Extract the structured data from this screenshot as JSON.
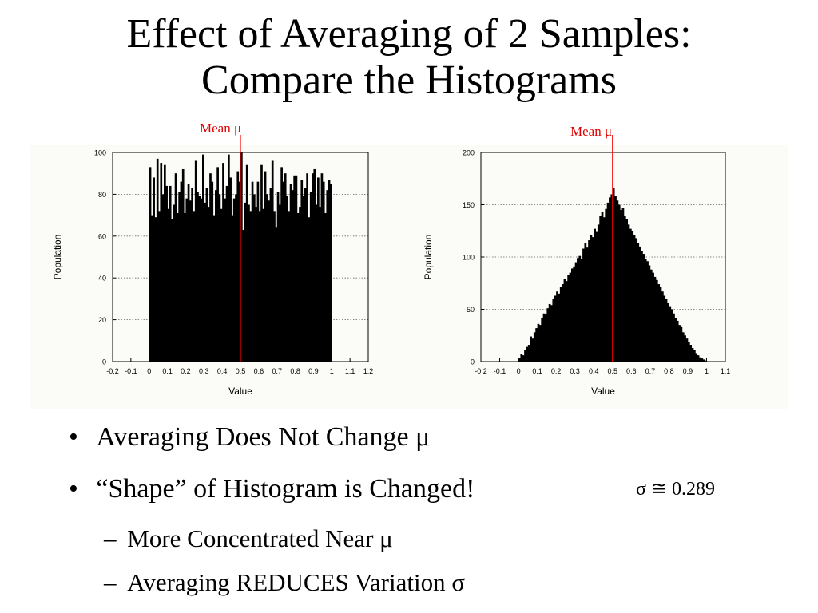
{
  "title": {
    "line1": "Effect of Averaging of 2 Samples:",
    "line2": "Compare the Histograms"
  },
  "chart_data": [
    {
      "type": "bar",
      "xlabel": "Value",
      "ylabel": "Population",
      "xlim": [
        -0.2,
        1.2
      ],
      "ylim": [
        0,
        100
      ],
      "x_ticks": [
        "-0.2",
        "-0.1",
        "0",
        "0.1",
        "0.2",
        "0.3",
        "0.4",
        "0.5",
        "0.6",
        "0.7",
        "0.8",
        "0.9",
        "1",
        "1.1",
        "1.2"
      ],
      "y_ticks": [
        "0",
        "20",
        "40",
        "60",
        "80",
        "100"
      ],
      "grid": "horizontal dotted",
      "mean_line_x": 0.5,
      "mean_label": "Mean μ",
      "bin_start": 0,
      "bin_width": 0.01,
      "values": [
        93,
        70,
        88,
        69,
        97,
        72,
        95,
        80,
        94,
        84,
        73,
        84,
        68,
        75,
        90,
        71,
        81,
        86,
        92,
        71,
        78,
        85,
        77,
        83,
        72,
        96,
        81,
        79,
        78,
        99,
        76,
        83,
        74,
        90,
        86,
        70,
        82,
        93,
        80,
        73,
        95,
        78,
        84,
        99,
        88,
        70,
        78,
        80,
        91,
        86,
        100,
        63,
        76,
        94,
        75,
        72,
        86,
        80,
        74,
        86,
        72,
        94,
        73,
        91,
        80,
        77,
        83,
        96,
        72,
        64,
        81,
        75,
        93,
        86,
        90,
        79,
        72,
        85,
        82,
        89,
        89,
        71,
        74,
        87,
        79,
        83,
        90,
        69,
        81,
        90,
        92,
        75,
        88,
        74,
        90,
        86,
        71,
        82,
        87,
        85
      ]
    },
    {
      "type": "bar",
      "xlabel": "Value",
      "ylabel": "Population",
      "xlim": [
        -0.2,
        1.1
      ],
      "ylim": [
        0,
        200
      ],
      "x_ticks": [
        "-0.2",
        "-0.1",
        "0",
        "0.1",
        "0.2",
        "0.3",
        "0.4",
        "0.5",
        "0.6",
        "0.7",
        "0.8",
        "0.9",
        "1",
        "1.1"
      ],
      "y_ticks": [
        "0",
        "50",
        "100",
        "150",
        "200"
      ],
      "grid": "horizontal dotted",
      "mean_line_x": 0.5,
      "mean_label": "Mean μ",
      "bin_start": 0,
      "bin_width": 0.01,
      "values": [
        3,
        7,
        6,
        11,
        14,
        16,
        24,
        22,
        28,
        32,
        36,
        35,
        42,
        46,
        45,
        51,
        55,
        54,
        60,
        63,
        67,
        65,
        71,
        74,
        79,
        77,
        83,
        85,
        89,
        91,
        95,
        99,
        101,
        98,
        108,
        113,
        109,
        116,
        121,
        119,
        127,
        124,
        131,
        139,
        143,
        138,
        146,
        152,
        157,
        160,
        166,
        158,
        154,
        150,
        145,
        147,
        139,
        136,
        131,
        127,
        125,
        121,
        118,
        113,
        110,
        106,
        103,
        98,
        96,
        92,
        88,
        85,
        81,
        78,
        74,
        71,
        67,
        63,
        60,
        56,
        53,
        50,
        46,
        42,
        39,
        35,
        33,
        28,
        25,
        22,
        19,
        16,
        13,
        11,
        8,
        6,
        4,
        3,
        2,
        1
      ]
    }
  ],
  "bullets": [
    "Averaging Does Not Change μ",
    "“Shape” of Histogram is Changed!"
  ],
  "sub_bullets": [
    "More Concentrated Near μ",
    "Averaging REDUCES Variation σ"
  ],
  "sigma_note": "σ ≅ 0.289",
  "bullet_marker": "•",
  "dash_marker": "–"
}
